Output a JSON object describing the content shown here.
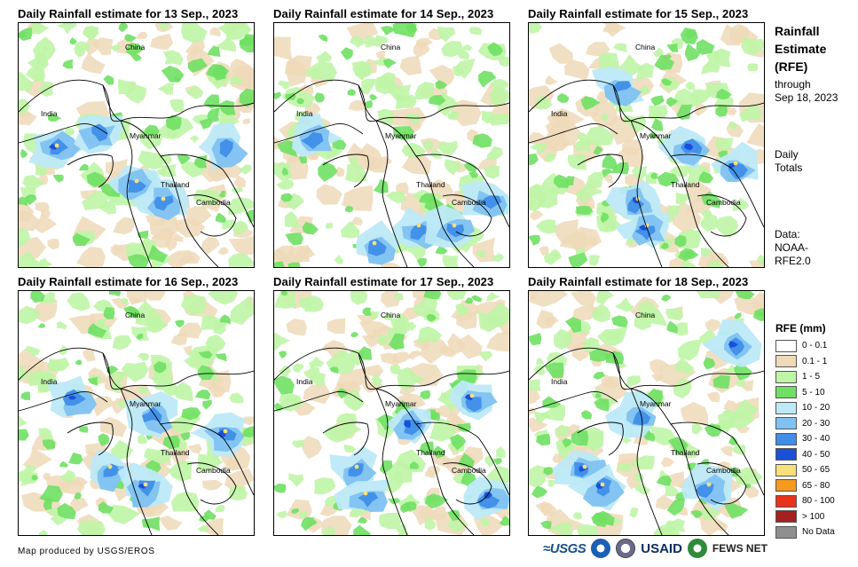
{
  "panels": [
    {
      "title": "Daily Rainfall estimate for 13 Sep., 2023"
    },
    {
      "title": "Daily Rainfall estimate for 14 Sep., 2023"
    },
    {
      "title": "Daily Rainfall estimate for 15 Sep., 2023"
    },
    {
      "title": "Daily Rainfall estimate for 16 Sep., 2023"
    },
    {
      "title": "Daily Rainfall estimate for 17 Sep., 2023"
    },
    {
      "title": "Daily Rainfall estimate for 18 Sep., 2023"
    }
  ],
  "country_labels": {
    "china": "China",
    "india": "India",
    "myanmar": "Myanmar",
    "thailand": "Thailand",
    "cambodia": "Cambodia"
  },
  "sidebar": {
    "title_line1": "Rainfall",
    "title_line2": "Estimate",
    "title_line3": "(RFE)",
    "through": "through",
    "date": "Sep 18, 2023",
    "daily": "Daily",
    "totals": "Totals",
    "data_label": "Data:",
    "data_source1": "NOAA-",
    "data_source2": "RFE2.0"
  },
  "legend": {
    "title": "RFE (mm)",
    "items": [
      {
        "label": "0 - 0.1",
        "color": "#ffffff"
      },
      {
        "label": "0.1 - 1",
        "color": "#eed9b9"
      },
      {
        "label": "1 - 5",
        "color": "#bff5a6"
      },
      {
        "label": "5 - 10",
        "color": "#6fe063"
      },
      {
        "label": "10 - 20",
        "color": "#bde9f7"
      },
      {
        "label": "20 - 30",
        "color": "#7fc2f2"
      },
      {
        "label": "30 - 40",
        "color": "#3f8ee8"
      },
      {
        "label": "40 - 50",
        "color": "#1a4fd8"
      },
      {
        "label": "50 - 65",
        "color": "#f7e07a"
      },
      {
        "label": "65 - 80",
        "color": "#f59a1c"
      },
      {
        "label": "80 - 100",
        "color": "#e8321c"
      },
      {
        "label": "> 100",
        "color": "#a3211e"
      },
      {
        "label": "No Data",
        "color": "#8f8f8f"
      }
    ]
  },
  "footer": {
    "credit": "Map produced by USGS/EROS",
    "logo_usgs": "≈USGS",
    "logo_usaid": "USAID",
    "logo_fews": "FEWS NET"
  }
}
